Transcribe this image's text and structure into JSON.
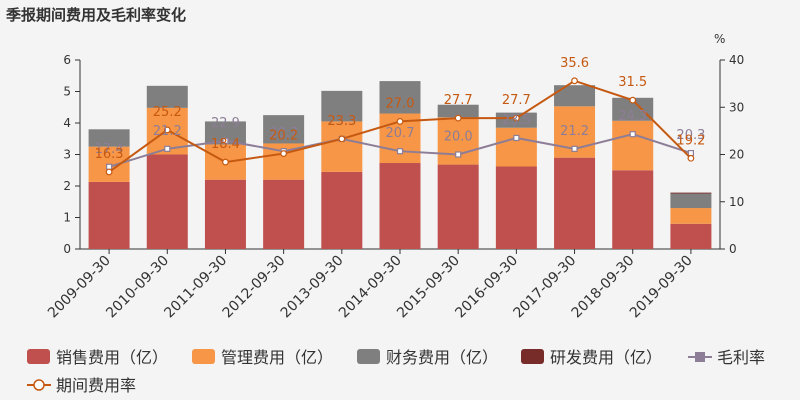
{
  "chart_data": {
    "type": "bar",
    "title": "季报期间费用及毛利率变化",
    "categories": [
      "2009-09-30",
      "2010-09-30",
      "2011-09-30",
      "2012-09-30",
      "2013-09-30",
      "2014-09-30",
      "2015-09-30",
      "2016-09-30",
      "2017-09-30",
      "2018-09-30",
      "2019-09-30"
    ],
    "ylim": [
      0,
      6
    ],
    "y_ticks": [
      0,
      1,
      2,
      3,
      4,
      5,
      6
    ],
    "y2lim": [
      0,
      40
    ],
    "y2_ticks": [
      0,
      10,
      20,
      30,
      40
    ],
    "y2_unit": "%",
    "stacked": true,
    "series": [
      {
        "name": "销售费用（亿）",
        "axis": "left",
        "color": "#c0504d",
        "values": [
          2.13,
          3.0,
          2.2,
          2.2,
          2.45,
          2.73,
          2.68,
          2.62,
          2.9,
          2.5,
          0.8
        ]
      },
      {
        "name": "管理费用（亿）",
        "axis": "left",
        "color": "#f79646",
        "values": [
          1.12,
          1.48,
          1.12,
          1.15,
          1.6,
          1.57,
          1.5,
          1.23,
          1.63,
          1.57,
          0.5
        ]
      },
      {
        "name": "财务费用（亿）",
        "axis": "left",
        "color": "#7f7f7f",
        "values": [
          0.55,
          0.7,
          0.73,
          0.9,
          0.97,
          1.03,
          0.4,
          0.48,
          0.67,
          0.73,
          0.46
        ]
      },
      {
        "name": "研发费用（亿）",
        "axis": "left",
        "color": "#772c2a",
        "values": [
          0,
          0,
          0,
          0,
          0,
          0,
          0,
          0,
          0,
          0,
          0.03
        ]
      }
    ],
    "lines": [
      {
        "name": "毛利率",
        "axis": "right",
        "color": "#8d7d96",
        "marker": "square",
        "values": [
          17.4,
          21.2,
          22.9,
          20.7,
          23.3,
          20.7,
          20.0,
          23.5,
          21.2,
          24.3,
          20.3
        ],
        "labels": [
          "17.4",
          "21.2",
          "22.9",
          "20.7",
          "23.3",
          "20.7",
          "20.0",
          "23.5",
          "21.2",
          "24.3",
          "20.3"
        ]
      },
      {
        "name": "期间费用率",
        "axis": "right",
        "color": "#c65911",
        "marker": "circle",
        "values": [
          16.3,
          25.2,
          18.4,
          20.2,
          23.3,
          27.0,
          27.7,
          27.7,
          35.6,
          31.5,
          19.2
        ],
        "labels": [
          "16.3",
          "25.2",
          "18.4",
          "20.2",
          "23.3",
          "27.0",
          "27.7",
          "27.7",
          "35.6",
          "31.5",
          "19.2"
        ]
      }
    ],
    "legend_position": "bottom",
    "grid": false
  }
}
